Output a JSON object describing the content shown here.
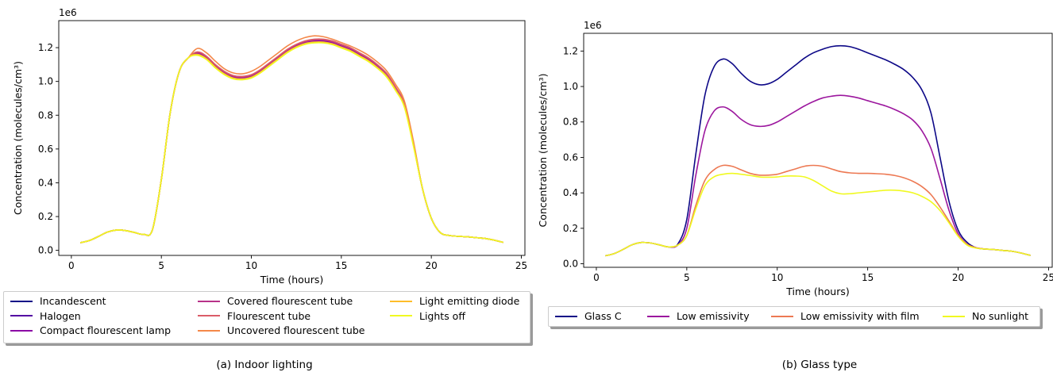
{
  "chart_data": [
    {
      "type": "line",
      "caption": "(a) Indoor lighting",
      "xlabel": "Time (hours)",
      "ylabel": "Concentration (molecules/cm³)",
      "scale_label": "1e6",
      "xlim": [
        -0.7,
        25.2
      ],
      "ylim": [
        -0.03,
        1.36
      ],
      "xticks": [
        0,
        5,
        10,
        15,
        20,
        25
      ],
      "yticks": [
        0.0,
        0.2,
        0.4,
        0.6,
        0.8,
        1.0,
        1.2
      ],
      "ytick_labels": [
        "0.0",
        "0.2",
        "0.4",
        "0.6",
        "0.8",
        "1.0",
        "1.2"
      ],
      "legend_position": "below",
      "legend_columns": 3,
      "x": [
        0.5,
        1.0,
        1.5,
        2.0,
        2.5,
        3.0,
        3.5,
        4.0,
        4.5,
        5.0,
        5.5,
        6.0,
        6.5,
        7.0,
        7.5,
        8.0,
        8.5,
        9.0,
        9.5,
        10.0,
        10.5,
        11.0,
        11.5,
        12.0,
        12.5,
        13.0,
        13.5,
        14.0,
        14.5,
        15.0,
        15.5,
        16.0,
        16.5,
        17.0,
        17.5,
        18.0,
        18.5,
        19.0,
        19.5,
        20.0,
        20.5,
        21.0,
        21.5,
        22.0,
        22.5,
        23.0,
        23.5,
        24.0
      ],
      "series": [
        {
          "name": "Incandescent",
          "color": "#0d0887",
          "values": [
            0.045,
            0.058,
            0.082,
            0.108,
            0.12,
            0.117,
            0.106,
            0.095,
            0.12,
            0.42,
            0.82,
            1.06,
            1.14,
            1.165,
            1.14,
            1.09,
            1.05,
            1.025,
            1.02,
            1.03,
            1.06,
            1.1,
            1.14,
            1.18,
            1.21,
            1.23,
            1.24,
            1.24,
            1.23,
            1.21,
            1.19,
            1.16,
            1.13,
            1.09,
            1.04,
            0.96,
            0.86,
            0.63,
            0.37,
            0.19,
            0.105,
            0.088,
            0.083,
            0.08,
            0.075,
            0.07,
            0.06,
            0.047
          ]
        },
        {
          "name": "Halogen",
          "color": "#5402a3",
          "values": [
            0.045,
            0.058,
            0.082,
            0.108,
            0.12,
            0.117,
            0.106,
            0.095,
            0.12,
            0.42,
            0.82,
            1.06,
            1.14,
            1.162,
            1.137,
            1.087,
            1.047,
            1.022,
            1.017,
            1.027,
            1.057,
            1.097,
            1.137,
            1.177,
            1.207,
            1.227,
            1.236,
            1.236,
            1.226,
            1.206,
            1.186,
            1.156,
            1.126,
            1.086,
            1.036,
            0.956,
            0.856,
            0.628,
            0.37,
            0.19,
            0.105,
            0.088,
            0.083,
            0.08,
            0.075,
            0.07,
            0.06,
            0.047
          ]
        },
        {
          "name": "Compact flourescent lamp",
          "color": "#8b0aa5",
          "values": [
            0.045,
            0.058,
            0.082,
            0.108,
            0.12,
            0.117,
            0.106,
            0.095,
            0.12,
            0.42,
            0.82,
            1.06,
            1.14,
            1.165,
            1.14,
            1.09,
            1.05,
            1.025,
            1.02,
            1.03,
            1.06,
            1.1,
            1.14,
            1.18,
            1.21,
            1.23,
            1.24,
            1.24,
            1.23,
            1.21,
            1.19,
            1.16,
            1.13,
            1.09,
            1.04,
            0.96,
            0.86,
            0.63,
            0.37,
            0.19,
            0.105,
            0.088,
            0.083,
            0.08,
            0.075,
            0.07,
            0.06,
            0.047
          ]
        },
        {
          "name": "Covered flourescent tube",
          "color": "#b83289",
          "values": [
            0.045,
            0.058,
            0.082,
            0.108,
            0.12,
            0.117,
            0.106,
            0.095,
            0.12,
            0.42,
            0.82,
            1.06,
            1.14,
            1.17,
            1.145,
            1.095,
            1.055,
            1.03,
            1.025,
            1.035,
            1.065,
            1.105,
            1.145,
            1.185,
            1.215,
            1.235,
            1.245,
            1.245,
            1.235,
            1.215,
            1.195,
            1.165,
            1.135,
            1.095,
            1.045,
            0.965,
            0.865,
            0.635,
            0.37,
            0.19,
            0.105,
            0.088,
            0.083,
            0.08,
            0.075,
            0.07,
            0.06,
            0.047
          ]
        },
        {
          "name": "Flourescent tube",
          "color": "#db5c68",
          "values": [
            0.045,
            0.058,
            0.082,
            0.108,
            0.12,
            0.117,
            0.106,
            0.095,
            0.12,
            0.42,
            0.82,
            1.06,
            1.14,
            1.175,
            1.15,
            1.1,
            1.06,
            1.035,
            1.03,
            1.04,
            1.07,
            1.11,
            1.15,
            1.19,
            1.22,
            1.24,
            1.25,
            1.25,
            1.24,
            1.22,
            1.2,
            1.17,
            1.14,
            1.1,
            1.05,
            0.97,
            0.87,
            0.64,
            0.37,
            0.19,
            0.105,
            0.088,
            0.083,
            0.08,
            0.075,
            0.07,
            0.06,
            0.047
          ]
        },
        {
          "name": "Uncovered flourescent tube",
          "color": "#f48849",
          "values": [
            0.045,
            0.058,
            0.082,
            0.108,
            0.12,
            0.117,
            0.106,
            0.095,
            0.12,
            0.42,
            0.82,
            1.06,
            1.14,
            1.195,
            1.17,
            1.12,
            1.075,
            1.05,
            1.045,
            1.06,
            1.09,
            1.13,
            1.17,
            1.21,
            1.24,
            1.26,
            1.27,
            1.265,
            1.25,
            1.23,
            1.21,
            1.185,
            1.155,
            1.115,
            1.065,
            0.985,
            0.885,
            0.65,
            0.37,
            0.19,
            0.105,
            0.088,
            0.083,
            0.08,
            0.075,
            0.07,
            0.06,
            0.047
          ]
        },
        {
          "name": "Light emitting diode",
          "color": "#febd2a",
          "values": [
            0.045,
            0.058,
            0.082,
            0.108,
            0.12,
            0.117,
            0.106,
            0.095,
            0.12,
            0.42,
            0.82,
            1.06,
            1.14,
            1.16,
            1.135,
            1.085,
            1.045,
            1.02,
            1.015,
            1.025,
            1.055,
            1.095,
            1.135,
            1.175,
            1.205,
            1.225,
            1.233,
            1.233,
            1.223,
            1.203,
            1.183,
            1.153,
            1.123,
            1.083,
            1.033,
            0.953,
            0.853,
            0.625,
            0.37,
            0.19,
            0.105,
            0.088,
            0.083,
            0.08,
            0.075,
            0.07,
            0.06,
            0.047
          ]
        },
        {
          "name": "Lights off",
          "color": "#f0f921",
          "values": [
            0.045,
            0.058,
            0.082,
            0.108,
            0.12,
            0.117,
            0.106,
            0.095,
            0.12,
            0.42,
            0.82,
            1.06,
            1.14,
            1.155,
            1.13,
            1.08,
            1.04,
            1.015,
            1.01,
            1.02,
            1.05,
            1.09,
            1.13,
            1.17,
            1.2,
            1.22,
            1.228,
            1.228,
            1.218,
            1.198,
            1.178,
            1.148,
            1.118,
            1.078,
            1.028,
            0.948,
            0.848,
            0.62,
            0.37,
            0.19,
            0.105,
            0.088,
            0.083,
            0.08,
            0.075,
            0.07,
            0.06,
            0.047
          ]
        }
      ]
    },
    {
      "type": "line",
      "caption": "(b) Glass type",
      "xlabel": "Time (hours)",
      "ylabel": "Concentration (molecules/cm³)",
      "scale_label": "1e6",
      "xlim": [
        -0.7,
        25.2
      ],
      "ylim": [
        -0.02,
        1.3
      ],
      "xticks": [
        0,
        5,
        10,
        15,
        20,
        25
      ],
      "yticks": [
        0.0,
        0.2,
        0.4,
        0.6,
        0.8,
        1.0,
        1.2
      ],
      "ytick_labels": [
        "0.0",
        "0.2",
        "0.4",
        "0.6",
        "0.8",
        "1.0",
        "1.2"
      ],
      "legend_position": "below",
      "legend_columns": 4,
      "x": [
        0.5,
        1.0,
        1.5,
        2.0,
        2.5,
        3.0,
        3.5,
        4.0,
        4.5,
        5.0,
        5.5,
        6.0,
        6.5,
        7.0,
        7.5,
        8.0,
        8.5,
        9.0,
        9.5,
        10.0,
        10.5,
        11.0,
        11.5,
        12.0,
        12.5,
        13.0,
        13.5,
        14.0,
        14.5,
        15.0,
        15.5,
        16.0,
        16.5,
        17.0,
        17.5,
        18.0,
        18.5,
        19.0,
        19.5,
        20.0,
        20.5,
        21.0,
        21.5,
        22.0,
        22.5,
        23.0,
        23.5,
        24.0
      ],
      "series": [
        {
          "name": "Glass C",
          "color": "#0d0887",
          "values": [
            0.045,
            0.058,
            0.082,
            0.108,
            0.12,
            0.117,
            0.106,
            0.095,
            0.11,
            0.25,
            0.62,
            0.95,
            1.11,
            1.155,
            1.13,
            1.075,
            1.03,
            1.01,
            1.015,
            1.04,
            1.08,
            1.12,
            1.16,
            1.19,
            1.21,
            1.225,
            1.23,
            1.225,
            1.21,
            1.19,
            1.17,
            1.15,
            1.125,
            1.095,
            1.05,
            0.98,
            0.85,
            0.6,
            0.35,
            0.19,
            0.12,
            0.09,
            0.083,
            0.08,
            0.075,
            0.07,
            0.06,
            0.047
          ]
        },
        {
          "name": "Low emissivity",
          "color": "#9c179e",
          "values": [
            0.045,
            0.058,
            0.082,
            0.108,
            0.12,
            0.117,
            0.106,
            0.095,
            0.105,
            0.2,
            0.5,
            0.75,
            0.86,
            0.885,
            0.86,
            0.815,
            0.785,
            0.775,
            0.78,
            0.8,
            0.83,
            0.86,
            0.89,
            0.915,
            0.935,
            0.945,
            0.95,
            0.945,
            0.935,
            0.92,
            0.905,
            0.89,
            0.87,
            0.845,
            0.81,
            0.75,
            0.65,
            0.48,
            0.3,
            0.17,
            0.11,
            0.09,
            0.083,
            0.08,
            0.075,
            0.07,
            0.06,
            0.047
          ]
        },
        {
          "name": "Low emissivity with film",
          "color": "#ed7953",
          "values": [
            0.045,
            0.058,
            0.082,
            0.108,
            0.12,
            0.117,
            0.106,
            0.095,
            0.105,
            0.16,
            0.33,
            0.47,
            0.53,
            0.555,
            0.55,
            0.53,
            0.51,
            0.5,
            0.5,
            0.505,
            0.52,
            0.535,
            0.55,
            0.555,
            0.55,
            0.535,
            0.52,
            0.513,
            0.51,
            0.51,
            0.508,
            0.505,
            0.498,
            0.485,
            0.465,
            0.435,
            0.39,
            0.32,
            0.24,
            0.16,
            0.11,
            0.09,
            0.083,
            0.08,
            0.075,
            0.07,
            0.06,
            0.047
          ]
        },
        {
          "name": "No sunlight",
          "color": "#f0f921",
          "values": [
            0.045,
            0.058,
            0.082,
            0.108,
            0.12,
            0.117,
            0.106,
            0.095,
            0.105,
            0.16,
            0.31,
            0.44,
            0.49,
            0.505,
            0.51,
            0.505,
            0.498,
            0.49,
            0.488,
            0.49,
            0.495,
            0.495,
            0.49,
            0.47,
            0.44,
            0.41,
            0.395,
            0.395,
            0.4,
            0.405,
            0.41,
            0.415,
            0.415,
            0.41,
            0.4,
            0.38,
            0.35,
            0.3,
            0.23,
            0.155,
            0.105,
            0.088,
            0.083,
            0.08,
            0.075,
            0.07,
            0.06,
            0.047
          ]
        }
      ]
    }
  ]
}
